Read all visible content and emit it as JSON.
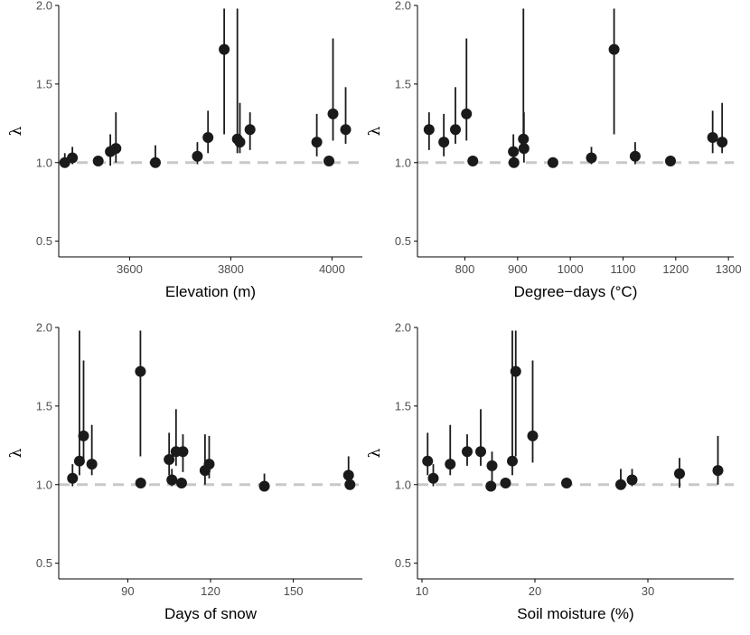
{
  "chart_data": [
    {
      "type": "scatter",
      "xlabel": "Elevation (m)",
      "ylabel": "λ",
      "xlim": [
        3460,
        4060
      ],
      "ylim": [
        0.4,
        2.0
      ],
      "xticks": [
        3600,
        3800,
        4000
      ],
      "xtick_labels": [
        "3600",
        "3800",
        "4000"
      ],
      "yticks": [
        0.5,
        1.0,
        1.5,
        2.0
      ],
      "ytick_labels": [
        "0.5",
        "1.0",
        "1.5",
        "2.0"
      ],
      "reference_line": 1.0,
      "points": [
        {
          "x": 3472,
          "y": 1.0,
          "lo": 0.98,
          "hi": 1.06
        },
        {
          "x": 3487,
          "y": 1.03,
          "lo": 0.99,
          "hi": 1.1
        },
        {
          "x": 3538,
          "y": 1.01,
          "lo": 1.0,
          "hi": 1.02
        },
        {
          "x": 3562,
          "y": 1.07,
          "lo": 0.98,
          "hi": 1.18
        },
        {
          "x": 3573,
          "y": 1.09,
          "lo": 1.0,
          "hi": 1.32
        },
        {
          "x": 3651,
          "y": 1.0,
          "lo": 0.99,
          "hi": 1.11
        },
        {
          "x": 3734,
          "y": 1.04,
          "lo": 0.99,
          "hi": 1.13
        },
        {
          "x": 3755,
          "y": 1.16,
          "lo": 1.06,
          "hi": 1.33
        },
        {
          "x": 3787,
          "y": 1.72,
          "lo": 1.18,
          "hi": 1.98
        },
        {
          "x": 3813,
          "y": 1.15,
          "lo": 1.06,
          "hi": 1.98
        },
        {
          "x": 3818,
          "y": 1.13,
          "lo": 1.06,
          "hi": 1.38
        },
        {
          "x": 3838,
          "y": 1.21,
          "lo": 1.08,
          "hi": 1.32
        },
        {
          "x": 3970,
          "y": 1.13,
          "lo": 1.04,
          "hi": 1.31
        },
        {
          "x": 3994,
          "y": 1.01,
          "lo": 1.0,
          "hi": 1.03
        },
        {
          "x": 4002,
          "y": 1.31,
          "lo": 1.14,
          "hi": 1.79
        },
        {
          "x": 4027,
          "y": 1.21,
          "lo": 1.12,
          "hi": 1.48
        }
      ]
    },
    {
      "type": "scatter",
      "xlabel": "Degree−days (°C)",
      "ylabel": "λ",
      "xlim": [
        710,
        1310
      ],
      "ylim": [
        0.4,
        2.0
      ],
      "xticks": [
        800,
        900,
        1000,
        1100,
        1200,
        1300
      ],
      "xtick_labels": [
        "800",
        "900",
        "1000",
        "1100",
        "1200",
        "1300"
      ],
      "yticks": [
        0.5,
        1.0,
        1.5,
        2.0
      ],
      "ytick_labels": [
        "0.5",
        "1.0",
        "1.5",
        "2.0"
      ],
      "reference_line": 1.0,
      "points": [
        {
          "x": 732,
          "y": 1.21,
          "lo": 1.08,
          "hi": 1.32
        },
        {
          "x": 760,
          "y": 1.13,
          "lo": 1.04,
          "hi": 1.31
        },
        {
          "x": 782,
          "y": 1.21,
          "lo": 1.12,
          "hi": 1.48
        },
        {
          "x": 803,
          "y": 1.31,
          "lo": 1.14,
          "hi": 1.79
        },
        {
          "x": 815,
          "y": 1.01,
          "lo": 1.0,
          "hi": 1.03
        },
        {
          "x": 892,
          "y": 1.07,
          "lo": 0.98,
          "hi": 1.18
        },
        {
          "x": 893,
          "y": 1.0,
          "lo": 0.98,
          "hi": 1.06
        },
        {
          "x": 911,
          "y": 1.15,
          "lo": 1.06,
          "hi": 1.98
        },
        {
          "x": 912,
          "y": 1.09,
          "lo": 1.0,
          "hi": 1.32
        },
        {
          "x": 967,
          "y": 1.0,
          "lo": 0.99,
          "hi": 1.01
        },
        {
          "x": 1040,
          "y": 1.03,
          "lo": 0.99,
          "hi": 1.1
        },
        {
          "x": 1083,
          "y": 1.72,
          "lo": 1.18,
          "hi": 1.98
        },
        {
          "x": 1123,
          "y": 1.04,
          "lo": 0.99,
          "hi": 1.13
        },
        {
          "x": 1190,
          "y": 1.01,
          "lo": 1.0,
          "hi": 1.02
        },
        {
          "x": 1270,
          "y": 1.16,
          "lo": 1.06,
          "hi": 1.33
        },
        {
          "x": 1288,
          "y": 1.13,
          "lo": 1.06,
          "hi": 1.38
        }
      ]
    },
    {
      "type": "scatter",
      "xlabel": "Days of snow",
      "ylabel": "λ",
      "xlim": [
        65,
        175
      ],
      "ylim": [
        0.4,
        2.0
      ],
      "xticks": [
        90,
        120,
        150
      ],
      "xtick_labels": [
        "90",
        "120",
        "150"
      ],
      "yticks": [
        0.5,
        1.0,
        1.5,
        2.0
      ],
      "ytick_labels": [
        "0.5",
        "1.0",
        "1.5",
        "2.0"
      ],
      "reference_line": 1.0,
      "points": [
        {
          "x": 70,
          "y": 1.04,
          "lo": 0.99,
          "hi": 1.13
        },
        {
          "x": 72.5,
          "y": 1.15,
          "lo": 1.06,
          "hi": 1.98
        },
        {
          "x": 74,
          "y": 1.31,
          "lo": 1.14,
          "hi": 1.79
        },
        {
          "x": 77,
          "y": 1.13,
          "lo": 1.06,
          "hi": 1.38
        },
        {
          "x": 94.6,
          "y": 1.72,
          "lo": 1.18,
          "hi": 1.98
        },
        {
          "x": 94.7,
          "y": 1.01,
          "lo": 1.0,
          "hi": 1.02
        },
        {
          "x": 105,
          "y": 1.16,
          "lo": 1.06,
          "hi": 1.33
        },
        {
          "x": 106,
          "y": 1.03,
          "lo": 0.99,
          "hi": 1.1
        },
        {
          "x": 107.5,
          "y": 1.21,
          "lo": 1.12,
          "hi": 1.48
        },
        {
          "x": 109.5,
          "y": 1.01,
          "lo": 1.0,
          "hi": 1.03
        },
        {
          "x": 110,
          "y": 1.21,
          "lo": 1.08,
          "hi": 1.32
        },
        {
          "x": 118,
          "y": 1.09,
          "lo": 1.0,
          "hi": 1.32
        },
        {
          "x": 119.5,
          "y": 1.13,
          "lo": 1.04,
          "hi": 1.31
        },
        {
          "x": 139.5,
          "y": 0.99,
          "lo": 0.98,
          "hi": 1.07
        },
        {
          "x": 170,
          "y": 1.06,
          "lo": 0.98,
          "hi": 1.18
        },
        {
          "x": 170.5,
          "y": 1.0,
          "lo": 0.98,
          "hi": 1.05
        }
      ]
    },
    {
      "type": "scatter",
      "xlabel": "Soil moisture (%)",
      "ylabel": "λ",
      "xlim": [
        9.6,
        37.6
      ],
      "ylim": [
        0.4,
        2.0
      ],
      "xticks": [
        10,
        20,
        30
      ],
      "xtick_labels": [
        "10",
        "20",
        "30"
      ],
      "yticks": [
        0.5,
        1.0,
        1.5,
        2.0
      ],
      "ytick_labels": [
        "0.5",
        "1.0",
        "1.5",
        "2.0"
      ],
      "reference_line": 1.0,
      "points": [
        {
          "x": 10.5,
          "y": 1.15,
          "lo": 1.06,
          "hi": 1.33
        },
        {
          "x": 11.0,
          "y": 1.04,
          "lo": 0.99,
          "hi": 1.13
        },
        {
          "x": 12.5,
          "y": 1.13,
          "lo": 1.06,
          "hi": 1.38
        },
        {
          "x": 14.0,
          "y": 1.21,
          "lo": 1.12,
          "hi": 1.32
        },
        {
          "x": 15.2,
          "y": 1.21,
          "lo": 1.12,
          "hi": 1.48
        },
        {
          "x": 16.1,
          "y": 0.99,
          "lo": 0.98,
          "hi": 1.01
        },
        {
          "x": 16.2,
          "y": 1.12,
          "lo": 1.0,
          "hi": 1.21
        },
        {
          "x": 17.4,
          "y": 1.01,
          "lo": 1.0,
          "hi": 1.02
        },
        {
          "x": 18.0,
          "y": 1.15,
          "lo": 1.06,
          "hi": 1.98
        },
        {
          "x": 18.3,
          "y": 1.72,
          "lo": 1.18,
          "hi": 1.98
        },
        {
          "x": 19.8,
          "y": 1.31,
          "lo": 1.14,
          "hi": 1.79
        },
        {
          "x": 22.8,
          "y": 1.01,
          "lo": 1.0,
          "hi": 1.03
        },
        {
          "x": 27.6,
          "y": 1.0,
          "lo": 0.99,
          "hi": 1.1
        },
        {
          "x": 28.6,
          "y": 1.03,
          "lo": 0.99,
          "hi": 1.1
        },
        {
          "x": 32.8,
          "y": 1.07,
          "lo": 0.98,
          "hi": 1.17
        },
        {
          "x": 36.2,
          "y": 1.09,
          "lo": 1.0,
          "hi": 1.31
        }
      ]
    }
  ],
  "colors": {
    "point": "#1a1a1a",
    "errorbar": "#1a1a1a",
    "reference_line": "#c8c8c8",
    "axis": "#000000",
    "tick_label": "#4d4d4d"
  }
}
